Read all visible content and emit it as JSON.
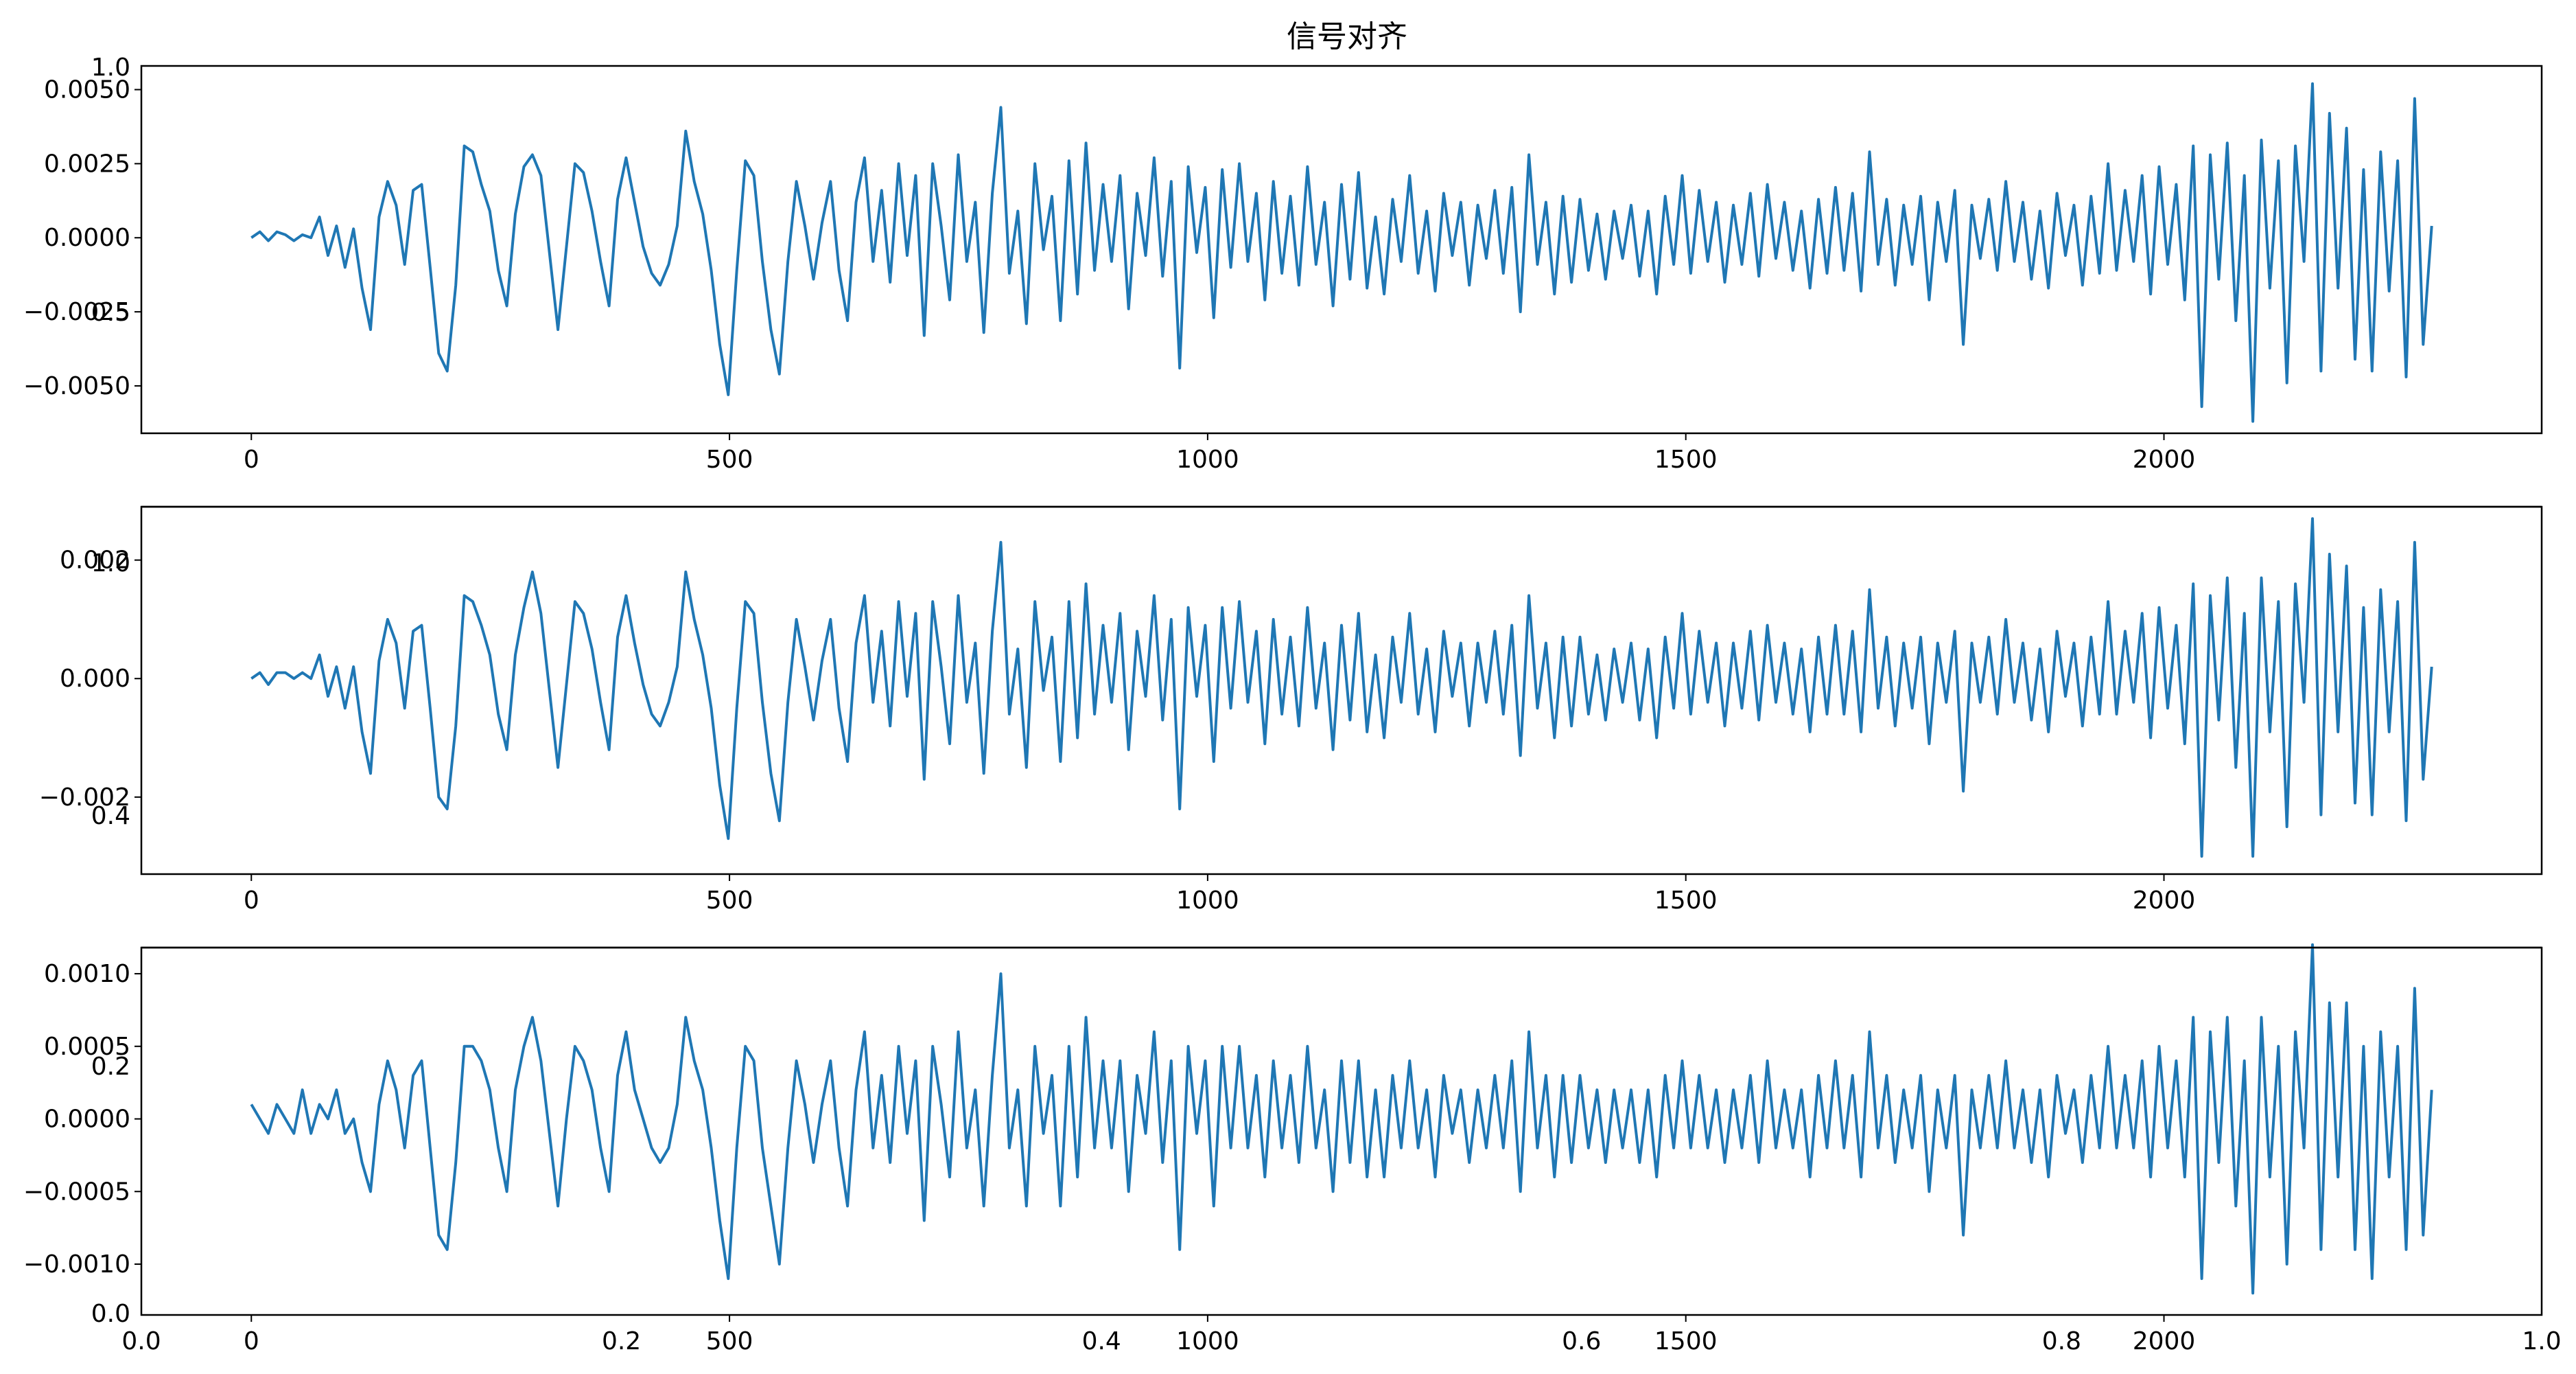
{
  "figure": {
    "title": "信号对齐",
    "colors": {
      "line": "#1f77b4",
      "axes": "#000000",
      "background": "#ffffff"
    }
  },
  "chart_data": [
    {
      "type": "line",
      "title": "",
      "xlabel": "",
      "ylabel": "",
      "x_range": [
        0,
        2280
      ],
      "xlim": [
        -115,
        2395
      ],
      "ylim": [
        -0.0066,
        0.0058
      ],
      "x_ticks": [
        0,
        500,
        1000,
        1500,
        2000
      ],
      "x_tick_labels": [
        "0",
        "500",
        "1000",
        "1500",
        "2000"
      ],
      "y_ticks": [
        -0.005,
        -0.0025,
        0.0,
        0.0025,
        0.005
      ],
      "y_tick_labels": [
        "−0.0050",
        "−0.0025",
        "0.0000",
        "0.0025",
        "0.0050"
      ],
      "series": [
        {
          "values": [
            0.0,
            0.0002,
            -0.0001,
            0.0002,
            0.0001,
            -0.0001,
            0.0001,
            0.0,
            0.0007,
            -0.0006,
            0.0004,
            -0.001,
            0.0003,
            -0.0017,
            -0.0031,
            0.0007,
            0.0019,
            0.0011,
            -0.0009,
            0.0016,
            0.0018,
            -0.001,
            -0.0039,
            -0.0045,
            -0.0016,
            0.0031,
            0.0029,
            0.0018,
            0.0009,
            -0.0011,
            -0.0023,
            0.0008,
            0.0024,
            0.0028,
            0.0021,
            -0.0005,
            -0.0031,
            -0.0003,
            0.0025,
            0.0022,
            0.0009,
            -0.0008,
            -0.0023,
            0.0013,
            0.0027,
            0.0012,
            -0.0003,
            -0.0012,
            -0.0016,
            -0.0009,
            0.0004,
            0.0036,
            0.0019,
            0.0008,
            -0.0011,
            -0.0036,
            -0.0053,
            -0.0011,
            0.0026,
            0.0021,
            -0.0008,
            -0.0031,
            -0.0046,
            -0.0008,
            0.0019,
            0.0004,
            -0.0014,
            0.0005,
            0.0019,
            -0.0011,
            -0.0028,
            0.0012,
            0.0027,
            -0.0008,
            0.0016,
            -0.0015,
            0.0025,
            -0.0006,
            0.0021,
            -0.0033,
            0.0025,
            0.0004,
            -0.0021,
            0.0028,
            -0.0008,
            0.0012,
            -0.0032,
            0.0015,
            0.0044,
            -0.0012,
            0.0009,
            -0.0029,
            0.0025,
            -0.0004,
            0.0014,
            -0.0028,
            0.0026,
            -0.0019,
            0.0032,
            -0.0011,
            0.0018,
            -0.0008,
            0.0021,
            -0.0024,
            0.0015,
            -0.0006,
            0.0027,
            -0.0013,
            0.0019,
            -0.0044,
            0.0024,
            -0.0005,
            0.0017,
            -0.0027,
            0.0023,
            -0.001,
            0.0025,
            -0.0008,
            0.0015,
            -0.0021,
            0.0019,
            -0.0012,
            0.0014,
            -0.0016,
            0.0024,
            -0.0009,
            0.0012,
            -0.0023,
            0.0018,
            -0.0014,
            0.0022,
            -0.0017,
            0.0007,
            -0.0019,
            0.0013,
            -0.0008,
            0.0021,
            -0.0012,
            0.0009,
            -0.0018,
            0.0015,
            -0.0006,
            0.0012,
            -0.0016,
            0.0011,
            -0.0007,
            0.0016,
            -0.0012,
            0.0017,
            -0.0025,
            0.0028,
            -0.0009,
            0.0012,
            -0.0019,
            0.0014,
            -0.0015,
            0.0013,
            -0.0011,
            0.0008,
            -0.0014,
            0.0009,
            -0.0007,
            0.0011,
            -0.0013,
            0.0009,
            -0.0019,
            0.0014,
            -0.0009,
            0.0021,
            -0.0012,
            0.0016,
            -0.0008,
            0.0012,
            -0.0015,
            0.0011,
            -0.0009,
            0.0015,
            -0.0013,
            0.0018,
            -0.0007,
            0.0012,
            -0.0011,
            0.0009,
            -0.0017,
            0.0013,
            -0.0012,
            0.0017,
            -0.0011,
            0.0015,
            -0.0018,
            0.0029,
            -0.0009,
            0.0013,
            -0.0016,
            0.0011,
            -0.0009,
            0.0014,
            -0.0021,
            0.0012,
            -0.0008,
            0.0016,
            -0.0036,
            0.0011,
            -0.0007,
            0.0013,
            -0.0011,
            0.0019,
            -0.0008,
            0.0012,
            -0.0014,
            0.0009,
            -0.0017,
            0.0015,
            -0.0006,
            0.0011,
            -0.0016,
            0.0014,
            -0.0012,
            0.0025,
            -0.0011,
            0.0016,
            -0.0008,
            0.0021,
            -0.0019,
            0.0024,
            -0.0009,
            0.0018,
            -0.0021,
            0.0031,
            -0.0057,
            0.0028,
            -0.0014,
            0.0032,
            -0.0028,
            0.0021,
            -0.0062,
            0.0033,
            -0.0017,
            0.0026,
            -0.0049,
            0.0031,
            -0.0008,
            0.0052,
            -0.0045,
            0.0042,
            -0.0017,
            0.0037,
            -0.0041,
            0.0023,
            -0.0045,
            0.0029,
            -0.0018,
            0.0026,
            -0.0047,
            0.0047,
            -0.0036,
            0.0004
          ]
        }
      ]
    },
    {
      "type": "line",
      "title": "",
      "xlabel": "",
      "ylabel": "",
      "x_range": [
        0,
        2280
      ],
      "xlim": [
        -115,
        2395
      ],
      "ylim": [
        -0.0033,
        0.0029
      ],
      "x_ticks": [
        0,
        500,
        1000,
        1500,
        2000
      ],
      "x_tick_labels": [
        "0",
        "500",
        "1000",
        "1500",
        "2000"
      ],
      "y_ticks": [
        -0.002,
        0.0,
        0.002
      ],
      "y_tick_labels": [
        "−0.002",
        "0.000",
        "0.002"
      ],
      "series": [
        {
          "values": [
            0.0,
            0.0001,
            -0.0001,
            0.0001,
            0.0001,
            0.0,
            0.0001,
            0.0,
            0.0004,
            -0.0003,
            0.0002,
            -0.0005,
            0.0002,
            -0.0009,
            -0.0016,
            0.0003,
            0.001,
            0.0006,
            -0.0005,
            0.0008,
            0.0009,
            -0.0005,
            -0.002,
            -0.0022,
            -0.0008,
            0.0014,
            0.0013,
            0.0009,
            0.0004,
            -0.0006,
            -0.0012,
            0.0004,
            0.0012,
            0.0018,
            0.0011,
            -0.0002,
            -0.0015,
            -0.0001,
            0.0013,
            0.0011,
            0.0005,
            -0.0004,
            -0.0012,
            0.0007,
            0.0014,
            0.0006,
            -0.0001,
            -0.0006,
            -0.0008,
            -0.0004,
            0.0002,
            0.0018,
            0.001,
            0.0004,
            -0.0005,
            -0.0018,
            -0.0027,
            -0.0005,
            0.0013,
            0.0011,
            -0.0004,
            -0.0016,
            -0.0024,
            -0.0004,
            0.001,
            0.0002,
            -0.0007,
            0.0003,
            0.001,
            -0.0005,
            -0.0014,
            0.0006,
            0.0014,
            -0.0004,
            0.0008,
            -0.0008,
            0.0013,
            -0.0003,
            0.0011,
            -0.0017,
            0.0013,
            0.0002,
            -0.0011,
            0.0014,
            -0.0004,
            0.0006,
            -0.0016,
            0.0008,
            0.0023,
            -0.0006,
            0.0005,
            -0.0015,
            0.0013,
            -0.0002,
            0.0007,
            -0.0014,
            0.0013,
            -0.001,
            0.0016,
            -0.0006,
            0.0009,
            -0.0004,
            0.0011,
            -0.0012,
            0.0008,
            -0.0003,
            0.0014,
            -0.0007,
            0.001,
            -0.0022,
            0.0012,
            -0.0003,
            0.0009,
            -0.0014,
            0.0012,
            -0.0005,
            0.0013,
            -0.0004,
            0.0008,
            -0.0011,
            0.001,
            -0.0006,
            0.0007,
            -0.0008,
            0.0012,
            -0.0005,
            0.0006,
            -0.0012,
            0.0009,
            -0.0007,
            0.0011,
            -0.0009,
            0.0004,
            -0.001,
            0.0007,
            -0.0004,
            0.0011,
            -0.0006,
            0.0005,
            -0.0009,
            0.0008,
            -0.0003,
            0.0006,
            -0.0008,
            0.0006,
            -0.0004,
            0.0008,
            -0.0006,
            0.0009,
            -0.0013,
            0.0014,
            -0.0005,
            0.0006,
            -0.001,
            0.0007,
            -0.0008,
            0.0007,
            -0.0006,
            0.0004,
            -0.0007,
            0.0005,
            -0.0004,
            0.0006,
            -0.0007,
            0.0005,
            -0.001,
            0.0007,
            -0.0005,
            0.0011,
            -0.0006,
            0.0008,
            -0.0004,
            0.0006,
            -0.0008,
            0.0006,
            -0.0005,
            0.0008,
            -0.0007,
            0.0009,
            -0.0004,
            0.0006,
            -0.0006,
            0.0005,
            -0.0009,
            0.0007,
            -0.0006,
            0.0009,
            -0.0006,
            0.0008,
            -0.0009,
            0.0015,
            -0.0005,
            0.0007,
            -0.0008,
            0.0006,
            -0.0005,
            0.0007,
            -0.0011,
            0.0006,
            -0.0004,
            0.0008,
            -0.0019,
            0.0006,
            -0.0004,
            0.0007,
            -0.0006,
            0.001,
            -0.0004,
            0.0006,
            -0.0007,
            0.0005,
            -0.0009,
            0.0008,
            -0.0003,
            0.0006,
            -0.0008,
            0.0007,
            -0.0006,
            0.0013,
            -0.0006,
            0.0008,
            -0.0004,
            0.0011,
            -0.001,
            0.0012,
            -0.0005,
            0.0009,
            -0.0011,
            0.0016,
            -0.003,
            0.0014,
            -0.0007,
            0.0017,
            -0.0015,
            0.0011,
            -0.003,
            0.0017,
            -0.0009,
            0.0013,
            -0.0025,
            0.0016,
            -0.0004,
            0.0027,
            -0.0023,
            0.0021,
            -0.0009,
            0.0019,
            -0.0021,
            0.0012,
            -0.0023,
            0.0015,
            -0.0009,
            0.0013,
            -0.0024,
            0.0023,
            -0.0017,
            0.0002
          ]
        }
      ]
    },
    {
      "type": "line",
      "title": "",
      "xlabel": "",
      "ylabel": "",
      "x_range": [
        0,
        2280
      ],
      "xlim": [
        -115,
        2395
      ],
      "ylim": [
        -0.00135,
        0.00118
      ],
      "x_ticks": [
        0,
        500,
        1000,
        1500,
        2000
      ],
      "x_tick_labels": [
        "0",
        "500",
        "1000",
        "1500",
        "2000"
      ],
      "y_ticks": [
        -0.001,
        -0.0005,
        0.0,
        0.0005,
        0.001
      ],
      "y_tick_labels": [
        "−0.0010",
        "−0.0005",
        "0.0000",
        "0.0005",
        "0.0010"
      ],
      "series": [
        {
          "values": [
            0.0001,
            0.0,
            -0.0001,
            0.0001,
            0.0,
            -0.0001,
            0.0002,
            -0.0001,
            0.0001,
            0.0,
            0.0002,
            -0.0001,
            0.0,
            -0.0003,
            -0.0005,
            0.0001,
            0.0004,
            0.0002,
            -0.0002,
            0.0003,
            0.0004,
            -0.0002,
            -0.0008,
            -0.0009,
            -0.0003,
            0.0005,
            0.0005,
            0.0004,
            0.0002,
            -0.0002,
            -0.0005,
            0.0002,
            0.0005,
            0.0007,
            0.0004,
            -0.0001,
            -0.0006,
            0.0,
            0.0005,
            0.0004,
            0.0002,
            -0.0002,
            -0.0005,
            0.0003,
            0.0006,
            0.0002,
            0.0,
            -0.0002,
            -0.0003,
            -0.0002,
            0.0001,
            0.0007,
            0.0004,
            0.0002,
            -0.0002,
            -0.0007,
            -0.0011,
            -0.0002,
            0.0005,
            0.0004,
            -0.0002,
            -0.0006,
            -0.001,
            -0.0002,
            0.0004,
            0.0001,
            -0.0003,
            0.0001,
            0.0004,
            -0.0002,
            -0.0006,
            0.0002,
            0.0006,
            -0.0002,
            0.0003,
            -0.0003,
            0.0005,
            -0.0001,
            0.0004,
            -0.0007,
            0.0005,
            0.0001,
            -0.0004,
            0.0006,
            -0.0002,
            0.0002,
            -0.0006,
            0.0003,
            0.001,
            -0.0002,
            0.0002,
            -0.0006,
            0.0005,
            -0.0001,
            0.0003,
            -0.0006,
            0.0005,
            -0.0004,
            0.0007,
            -0.0002,
            0.0004,
            -0.0002,
            0.0004,
            -0.0005,
            0.0003,
            -0.0001,
            0.0006,
            -0.0003,
            0.0004,
            -0.0009,
            0.0005,
            -0.0001,
            0.0004,
            -0.0006,
            0.0005,
            -0.0002,
            0.0005,
            -0.0002,
            0.0003,
            -0.0004,
            0.0004,
            -0.0002,
            0.0003,
            -0.0003,
            0.0005,
            -0.0002,
            0.0002,
            -0.0005,
            0.0004,
            -0.0003,
            0.0004,
            -0.0004,
            0.0002,
            -0.0004,
            0.0003,
            -0.0002,
            0.0004,
            -0.0002,
            0.0002,
            -0.0004,
            0.0003,
            -0.0001,
            0.0002,
            -0.0003,
            0.0002,
            -0.0002,
            0.0003,
            -0.0002,
            0.0004,
            -0.0005,
            0.0006,
            -0.0002,
            0.0003,
            -0.0004,
            0.0003,
            -0.0003,
            0.0003,
            -0.0002,
            0.0002,
            -0.0003,
            0.0002,
            -0.0002,
            0.0002,
            -0.0003,
            0.0002,
            -0.0004,
            0.0003,
            -0.0002,
            0.0004,
            -0.0002,
            0.0003,
            -0.0002,
            0.0002,
            -0.0003,
            0.0002,
            -0.0002,
            0.0003,
            -0.0003,
            0.0004,
            -0.0002,
            0.0002,
            -0.0002,
            0.0002,
            -0.0004,
            0.0003,
            -0.0002,
            0.0004,
            -0.0002,
            0.0003,
            -0.0004,
            0.0006,
            -0.0002,
            0.0003,
            -0.0003,
            0.0002,
            -0.0002,
            0.0003,
            -0.0005,
            0.0002,
            -0.0002,
            0.0003,
            -0.0008,
            0.0002,
            -0.0002,
            0.0003,
            -0.0002,
            0.0004,
            -0.0002,
            0.0002,
            -0.0003,
            0.0002,
            -0.0004,
            0.0003,
            -0.0001,
            0.0002,
            -0.0003,
            0.0003,
            -0.0002,
            0.0005,
            -0.0002,
            0.0003,
            -0.0002,
            0.0004,
            -0.0004,
            0.0005,
            -0.0002,
            0.0004,
            -0.0004,
            0.0007,
            -0.0011,
            0.0006,
            -0.0003,
            0.0007,
            -0.0006,
            0.0004,
            -0.0012,
            0.0007,
            -0.0004,
            0.0005,
            -0.001,
            0.0006,
            -0.0002,
            0.0012,
            -0.0009,
            0.0008,
            -0.0004,
            0.0008,
            -0.0009,
            0.0005,
            -0.0011,
            0.0006,
            -0.0004,
            0.0005,
            -0.0009,
            0.0009,
            -0.0008,
            0.0002
          ]
        }
      ]
    }
  ],
  "overlay_axes": [
    {
      "y_ticks": [
        0.0,
        0.5,
        1.0
      ],
      "y_tick_labels": [
        "0.0",
        "0.5",
        "1.0"
      ]
    },
    {
      "y_ticks": [
        0.4,
        1.0
      ],
      "y_tick_labels": [
        "0.4",
        "1.0"
      ]
    },
    {
      "x_ticks": [
        0.0,
        0.2,
        0.4,
        0.6,
        0.8,
        1.0
      ],
      "x_tick_labels": [
        "0.0",
        "0.2",
        "0.4",
        "0.6",
        "0.8",
        "1.0"
      ],
      "y_ticks": [
        0.0,
        0.2
      ],
      "y_tick_labels": [
        "0.0",
        "0.2"
      ]
    }
  ]
}
